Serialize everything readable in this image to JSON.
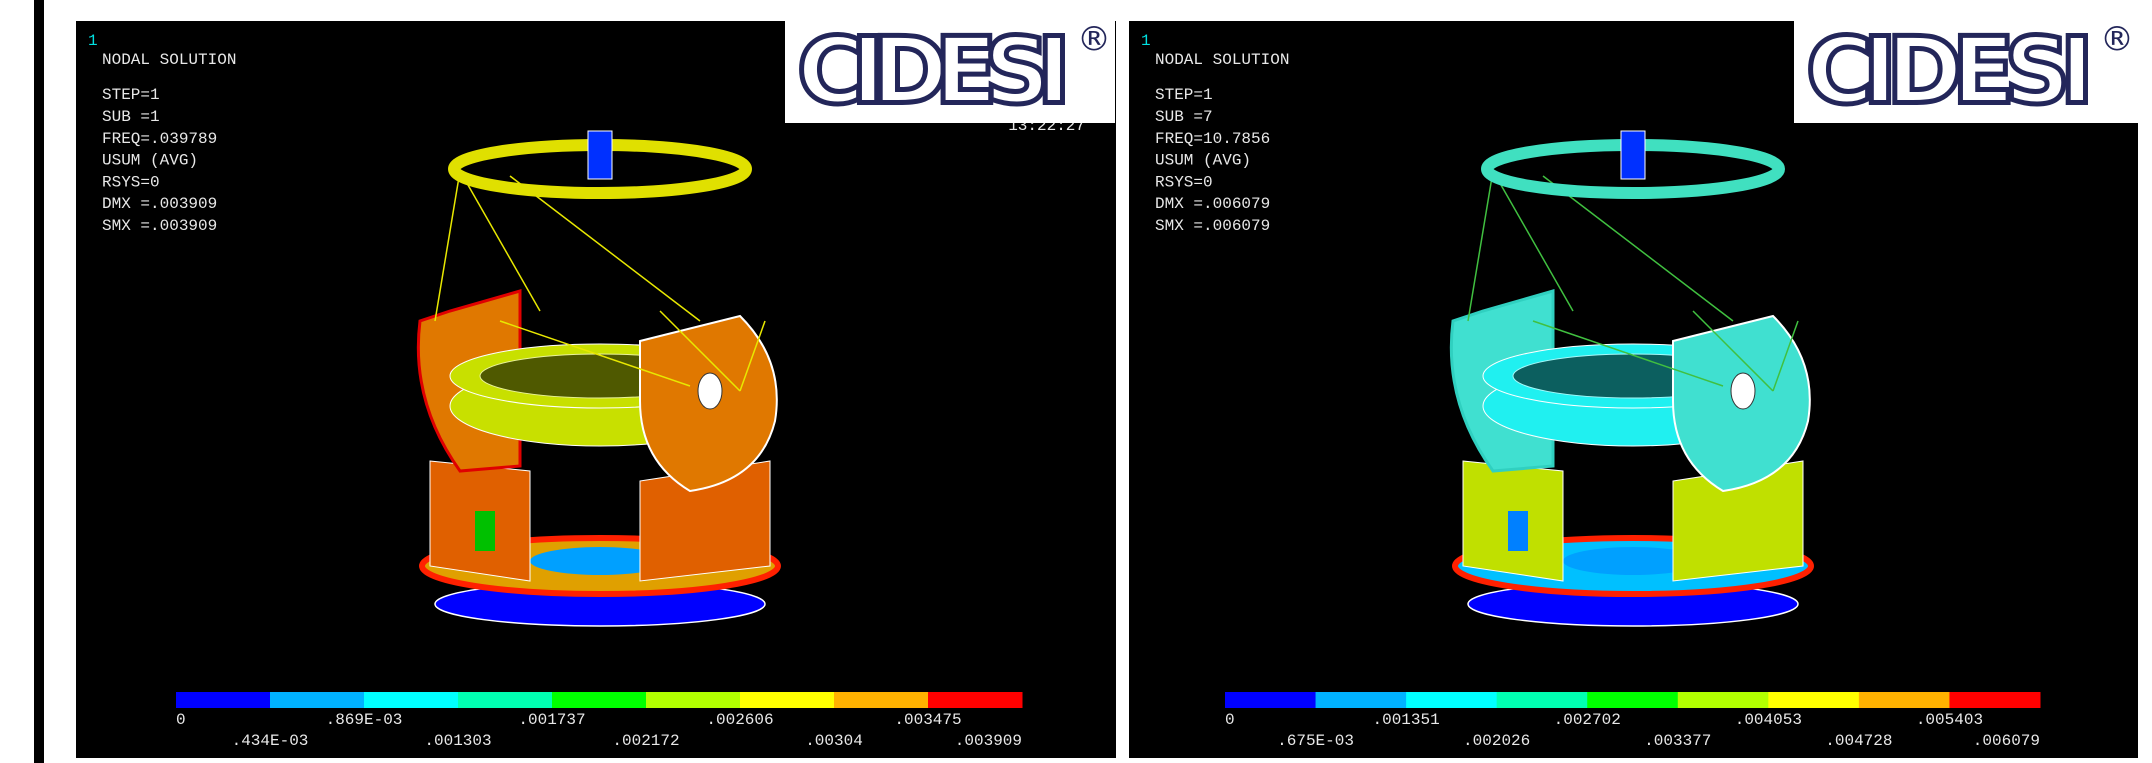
{
  "panels": [
    {
      "corner": "1",
      "lines": [
        "NODAL SOLUTION",
        "STEP=1",
        "SUB =1",
        "FREQ=.039789",
        "USUM      (AVG)",
        "RSYS=0",
        "DMX =.003909",
        "SMX =.003909"
      ],
      "time": "13:22:27",
      "logo": "CIDESI",
      "registered": "®",
      "legend": [
        "0",
        ".434E-03",
        ".869E-03",
        ".001303",
        ".001737",
        ".002172",
        ".002606",
        ".00304",
        ".003475",
        ".003909"
      ]
    },
    {
      "corner": "1",
      "lines": [
        "NODAL SOLUTION",
        "STEP=1",
        "SUB =7",
        "FREQ=10.7856",
        "USUM      (AVG)",
        "RSYS=0",
        "DMX =.006079",
        "SMX =.006079"
      ],
      "logo": "CIDESI",
      "registered": "®",
      "legend": [
        "0",
        ".675E-03",
        ".001351",
        ".002026",
        ".002702",
        ".003377",
        ".004053",
        ".004728",
        ".005403",
        ".006079"
      ]
    }
  ]
}
